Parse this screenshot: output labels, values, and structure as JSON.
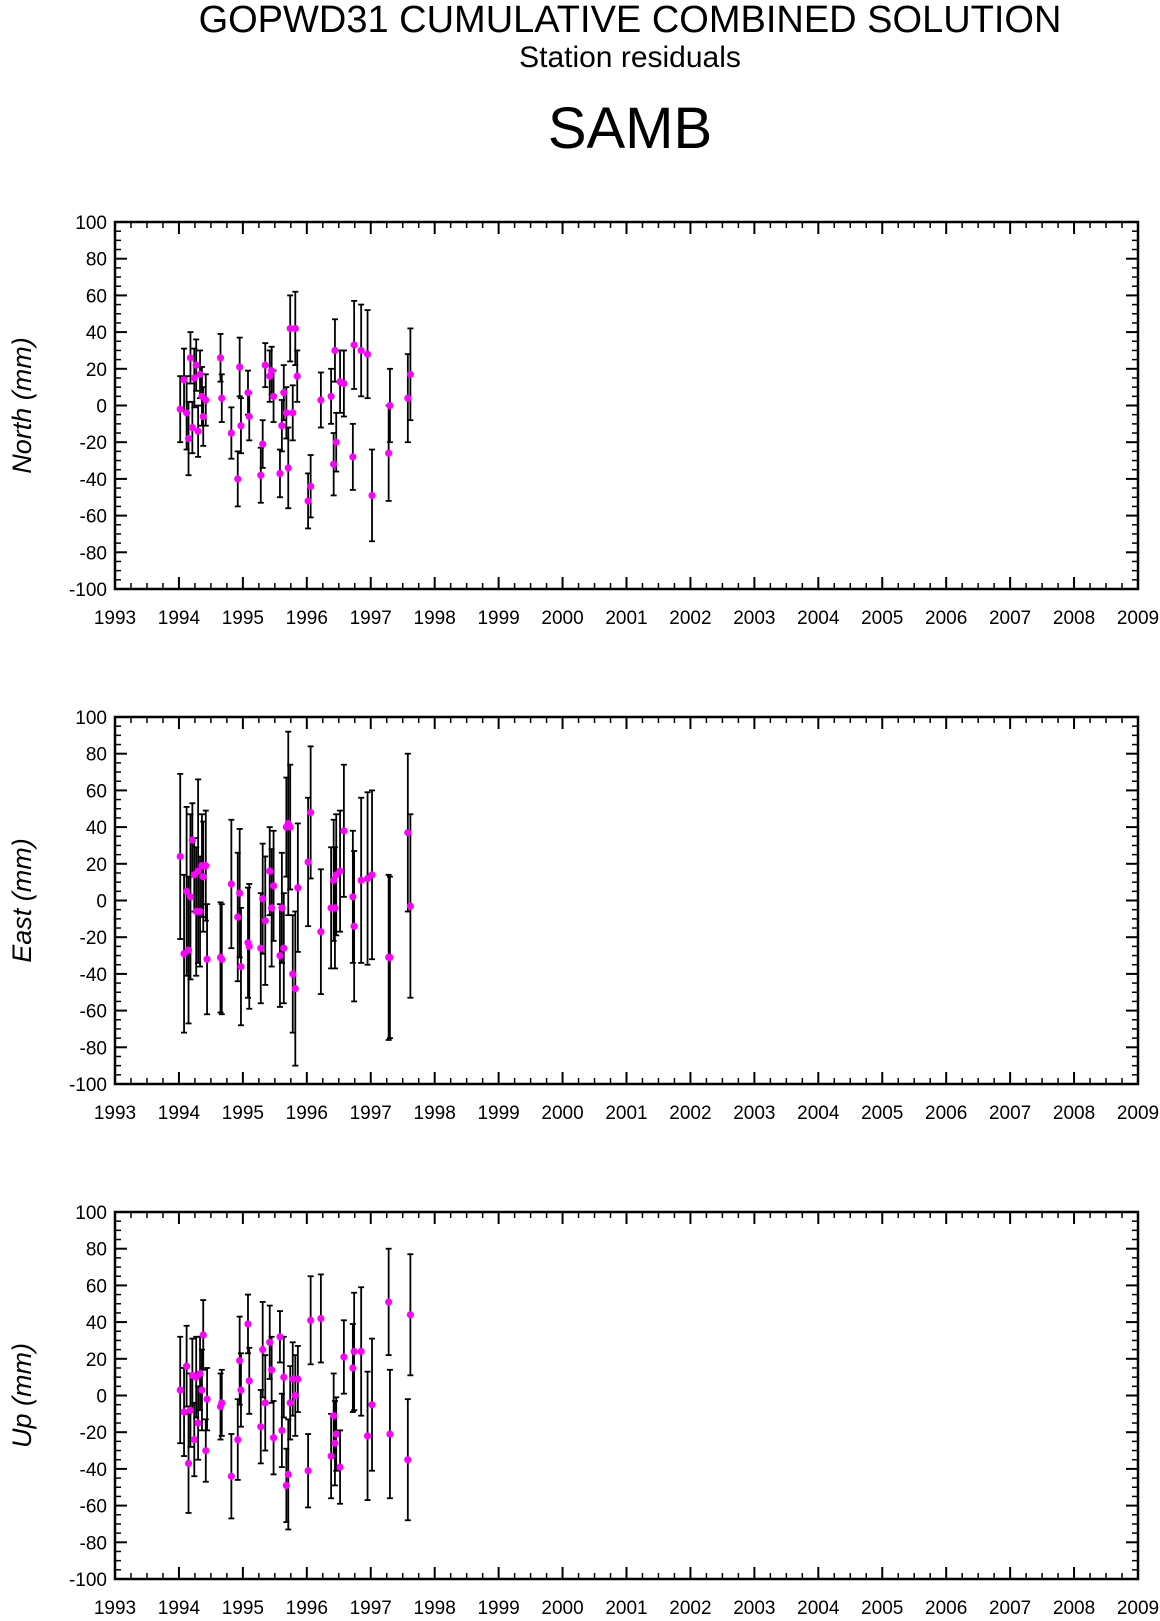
{
  "header": {
    "title": "GOPWD31 CUMULATIVE COMBINED SOLUTION",
    "subtitle": "Station residuals",
    "station": "SAMB"
  },
  "colors": {
    "marker": "#ff00ff",
    "errorbar": "#000000",
    "axis": "#000000"
  },
  "chart_data": [
    {
      "type": "scatter",
      "title": "",
      "ylabel": "North (mm)",
      "xlim": [
        1993,
        2009
      ],
      "ylim": [
        -100,
        100
      ],
      "xticks": [
        "1993",
        "1994",
        "1995",
        "1996",
        "1997",
        "1998",
        "1999",
        "2000",
        "2001",
        "2002",
        "2003",
        "2004",
        "2005",
        "2006",
        "2007",
        "2008",
        "2009"
      ],
      "yticks": [
        "-100",
        "-80",
        "-60",
        "-40",
        "-20",
        "0",
        "20",
        "40",
        "60",
        "80",
        "100"
      ],
      "grid": false,
      "points": [
        {
          "x": 1994.02,
          "y": -2,
          "err": 18
        },
        {
          "x": 1994.08,
          "y": 14,
          "err": 17
        },
        {
          "x": 1994.12,
          "y": -4,
          "err": 20
        },
        {
          "x": 1994.15,
          "y": -18,
          "err": 20
        },
        {
          "x": 1994.18,
          "y": 26,
          "err": 14
        },
        {
          "x": 1994.21,
          "y": -12,
          "err": 14
        },
        {
          "x": 1994.24,
          "y": 15,
          "err": 16
        },
        {
          "x": 1994.27,
          "y": 22,
          "err": 14
        },
        {
          "x": 1994.3,
          "y": -14,
          "err": 14
        },
        {
          "x": 1994.33,
          "y": 17,
          "err": 13
        },
        {
          "x": 1994.36,
          "y": 5,
          "err": 16
        },
        {
          "x": 1994.38,
          "y": -6,
          "err": 16
        },
        {
          "x": 1994.42,
          "y": 3,
          "err": 14
        },
        {
          "x": 1994.65,
          "y": 26,
          "err": 13
        },
        {
          "x": 1994.67,
          "y": 4,
          "err": 13
        },
        {
          "x": 1994.82,
          "y": -15,
          "err": 14
        },
        {
          "x": 1994.92,
          "y": -40,
          "err": 15
        },
        {
          "x": 1994.95,
          "y": 21,
          "err": 16
        },
        {
          "x": 1994.97,
          "y": -11,
          "err": 15
        },
        {
          "x": 1995.08,
          "y": 7,
          "err": 12
        },
        {
          "x": 1995.1,
          "y": -6,
          "err": 13
        },
        {
          "x": 1995.28,
          "y": -38,
          "err": 15
        },
        {
          "x": 1995.31,
          "y": -21,
          "err": 13
        },
        {
          "x": 1995.35,
          "y": 22,
          "err": 12
        },
        {
          "x": 1995.42,
          "y": 16,
          "err": 14
        },
        {
          "x": 1995.45,
          "y": 19,
          "err": 13
        },
        {
          "x": 1995.48,
          "y": 5,
          "err": 14
        },
        {
          "x": 1995.58,
          "y": -37,
          "err": 13
        },
        {
          "x": 1995.61,
          "y": -11,
          "err": 14
        },
        {
          "x": 1995.64,
          "y": 7,
          "err": 15
        },
        {
          "x": 1995.68,
          "y": -4,
          "err": 14
        },
        {
          "x": 1995.71,
          "y": -34,
          "err": 22
        },
        {
          "x": 1995.74,
          "y": 42,
          "err": 18
        },
        {
          "x": 1995.78,
          "y": -4,
          "err": 15
        },
        {
          "x": 1995.82,
          "y": 42,
          "err": 20
        },
        {
          "x": 1995.85,
          "y": 16,
          "err": 14
        },
        {
          "x": 1996.02,
          "y": -52,
          "err": 15
        },
        {
          "x": 1996.06,
          "y": -44,
          "err": 17
        },
        {
          "x": 1996.22,
          "y": 3,
          "err": 15
        },
        {
          "x": 1996.38,
          "y": 5,
          "err": 15
        },
        {
          "x": 1996.42,
          "y": -32,
          "err": 17
        },
        {
          "x": 1996.44,
          "y": 30,
          "err": 17
        },
        {
          "x": 1996.46,
          "y": -20,
          "err": 16
        },
        {
          "x": 1996.52,
          "y": 13,
          "err": 17
        },
        {
          "x": 1996.58,
          "y": 12,
          "err": 18
        },
        {
          "x": 1996.72,
          "y": -28,
          "err": 18
        },
        {
          "x": 1996.74,
          "y": 33,
          "err": 24
        },
        {
          "x": 1996.85,
          "y": 30,
          "err": 25
        },
        {
          "x": 1996.95,
          "y": 28,
          "err": 24
        },
        {
          "x": 1997.02,
          "y": -49,
          "err": 25
        },
        {
          "x": 1997.28,
          "y": -26,
          "err": 26
        },
        {
          "x": 1997.3,
          "y": 0,
          "err": 20
        },
        {
          "x": 1997.58,
          "y": 4,
          "err": 24
        },
        {
          "x": 1997.62,
          "y": 17,
          "err": 25
        }
      ]
    },
    {
      "type": "scatter",
      "title": "",
      "ylabel": "East (mm)",
      "xlim": [
        1993,
        2009
      ],
      "ylim": [
        -100,
        100
      ],
      "xticks": [
        "1993",
        "1994",
        "1995",
        "1996",
        "1997",
        "1998",
        "1999",
        "2000",
        "2001",
        "2002",
        "2003",
        "2004",
        "2005",
        "2006",
        "2007",
        "2008",
        "2009"
      ],
      "yticks": [
        "-100",
        "-80",
        "-60",
        "-40",
        "-20",
        "0",
        "20",
        "40",
        "60",
        "80",
        "100"
      ],
      "grid": false,
      "points": [
        {
          "x": 1994.02,
          "y": 24,
          "err": 45
        },
        {
          "x": 1994.08,
          "y": -29,
          "err": 43
        },
        {
          "x": 1994.12,
          "y": 5,
          "err": 46
        },
        {
          "x": 1994.15,
          "y": -27,
          "err": 40
        },
        {
          "x": 1994.18,
          "y": 2,
          "err": 45
        },
        {
          "x": 1994.21,
          "y": 33,
          "err": 20
        },
        {
          "x": 1994.24,
          "y": 14,
          "err": 20
        },
        {
          "x": 1994.27,
          "y": -6,
          "err": 35
        },
        {
          "x": 1994.3,
          "y": 16,
          "err": 50
        },
        {
          "x": 1994.33,
          "y": -6,
          "err": 30
        },
        {
          "x": 1994.36,
          "y": 19,
          "err": 28
        },
        {
          "x": 1994.38,
          "y": 13,
          "err": 30
        },
        {
          "x": 1994.42,
          "y": 19,
          "err": 30
        },
        {
          "x": 1994.44,
          "y": -32,
          "err": 30
        },
        {
          "x": 1994.65,
          "y": -31,
          "err": 30
        },
        {
          "x": 1994.67,
          "y": -32,
          "err": 30
        },
        {
          "x": 1994.82,
          "y": 9,
          "err": 35
        },
        {
          "x": 1994.92,
          "y": -9,
          "err": 35
        },
        {
          "x": 1994.95,
          "y": 4,
          "err": 35
        },
        {
          "x": 1994.97,
          "y": -36,
          "err": 32
        },
        {
          "x": 1995.08,
          "y": -23,
          "err": 30
        },
        {
          "x": 1995.1,
          "y": -25,
          "err": 34
        },
        {
          "x": 1995.28,
          "y": -26,
          "err": 30
        },
        {
          "x": 1995.31,
          "y": 1,
          "err": 30
        },
        {
          "x": 1995.35,
          "y": -11,
          "err": 35
        },
        {
          "x": 1995.42,
          "y": 16,
          "err": 24
        },
        {
          "x": 1995.45,
          "y": -4,
          "err": 32
        },
        {
          "x": 1995.48,
          "y": 8,
          "err": 30
        },
        {
          "x": 1995.58,
          "y": -30,
          "err": 28
        },
        {
          "x": 1995.61,
          "y": -4,
          "err": 30
        },
        {
          "x": 1995.64,
          "y": -26,
          "err": 30
        },
        {
          "x": 1995.68,
          "y": 40,
          "err": 27
        },
        {
          "x": 1995.71,
          "y": 42,
          "err": 50
        },
        {
          "x": 1995.74,
          "y": 40,
          "err": 34
        },
        {
          "x": 1995.78,
          "y": -40,
          "err": 32
        },
        {
          "x": 1995.82,
          "y": -48,
          "err": 42
        },
        {
          "x": 1995.86,
          "y": 7,
          "err": 35
        },
        {
          "x": 1996.02,
          "y": 21,
          "err": 35
        },
        {
          "x": 1996.06,
          "y": 48,
          "err": 36
        },
        {
          "x": 1996.22,
          "y": -17,
          "err": 34
        },
        {
          "x": 1996.38,
          "y": -4,
          "err": 33
        },
        {
          "x": 1996.42,
          "y": 11,
          "err": 33
        },
        {
          "x": 1996.44,
          "y": -4,
          "err": 33
        },
        {
          "x": 1996.46,
          "y": 14,
          "err": 33
        },
        {
          "x": 1996.52,
          "y": 16,
          "err": 33
        },
        {
          "x": 1996.58,
          "y": 38,
          "err": 36
        },
        {
          "x": 1996.72,
          "y": 2,
          "err": 36
        },
        {
          "x": 1996.74,
          "y": -14,
          "err": 41
        },
        {
          "x": 1996.85,
          "y": 11,
          "err": 45
        },
        {
          "x": 1996.95,
          "y": 12,
          "err": 47
        },
        {
          "x": 1997.02,
          "y": 14,
          "err": 46
        },
        {
          "x": 1997.28,
          "y": -31,
          "err": 45
        },
        {
          "x": 1997.3,
          "y": -31,
          "err": 44
        },
        {
          "x": 1997.58,
          "y": 37,
          "err": 43
        },
        {
          "x": 1997.62,
          "y": -3,
          "err": 50
        }
      ]
    },
    {
      "type": "scatter",
      "title": "",
      "ylabel": "Up (mm)",
      "xlim": [
        1993,
        2009
      ],
      "ylim": [
        -100,
        100
      ],
      "xticks": [
        "1993",
        "1994",
        "1995",
        "1996",
        "1997",
        "1998",
        "1999",
        "2000",
        "2001",
        "2002",
        "2003",
        "2004",
        "2005",
        "2006",
        "2007",
        "2008",
        "2009"
      ],
      "yticks": [
        "-100",
        "-80",
        "-60",
        "-40",
        "-20",
        "0",
        "20",
        "40",
        "60",
        "80",
        "100"
      ],
      "grid": false,
      "points": [
        {
          "x": 1994.02,
          "y": 3,
          "err": 29
        },
        {
          "x": 1994.08,
          "y": -9,
          "err": 24
        },
        {
          "x": 1994.12,
          "y": 16,
          "err": 22
        },
        {
          "x": 1994.15,
          "y": -37,
          "err": 27
        },
        {
          "x": 1994.18,
          "y": -8,
          "err": 20
        },
        {
          "x": 1994.21,
          "y": 11,
          "err": 20
        },
        {
          "x": 1994.24,
          "y": -24,
          "err": 20
        },
        {
          "x": 1994.27,
          "y": 10,
          "err": 22
        },
        {
          "x": 1994.3,
          "y": -15,
          "err": 20
        },
        {
          "x": 1994.33,
          "y": 12,
          "err": 20
        },
        {
          "x": 1994.36,
          "y": 3,
          "err": 22
        },
        {
          "x": 1994.38,
          "y": 33,
          "err": 19
        },
        {
          "x": 1994.42,
          "y": -30,
          "err": 17
        },
        {
          "x": 1994.44,
          "y": -2,
          "err": 17
        },
        {
          "x": 1994.65,
          "y": -6,
          "err": 18
        },
        {
          "x": 1994.67,
          "y": -4,
          "err": 18
        },
        {
          "x": 1994.82,
          "y": -44,
          "err": 23
        },
        {
          "x": 1994.92,
          "y": -24,
          "err": 22
        },
        {
          "x": 1994.95,
          "y": 19,
          "err": 24
        },
        {
          "x": 1994.97,
          "y": 3,
          "err": 20
        },
        {
          "x": 1995.08,
          "y": 39,
          "err": 16
        },
        {
          "x": 1995.1,
          "y": 8,
          "err": 18
        },
        {
          "x": 1995.28,
          "y": -17,
          "err": 20
        },
        {
          "x": 1995.31,
          "y": 25,
          "err": 26
        },
        {
          "x": 1995.35,
          "y": -4,
          "err": 26
        },
        {
          "x": 1995.42,
          "y": 29,
          "err": 20
        },
        {
          "x": 1995.45,
          "y": 14,
          "err": 18
        },
        {
          "x": 1995.48,
          "y": -23,
          "err": 20
        },
        {
          "x": 1995.58,
          "y": 32,
          "err": 14
        },
        {
          "x": 1995.61,
          "y": -19,
          "err": 20
        },
        {
          "x": 1995.64,
          "y": 10,
          "err": 22
        },
        {
          "x": 1995.68,
          "y": -49,
          "err": 20
        },
        {
          "x": 1995.71,
          "y": -43,
          "err": 30
        },
        {
          "x": 1995.74,
          "y": -4,
          "err": 20
        },
        {
          "x": 1995.78,
          "y": 9,
          "err": 20
        },
        {
          "x": 1995.82,
          "y": 0,
          "err": 22
        },
        {
          "x": 1995.86,
          "y": 9,
          "err": 18
        },
        {
          "x": 1996.02,
          "y": -41,
          "err": 20
        },
        {
          "x": 1996.06,
          "y": 41,
          "err": 24
        },
        {
          "x": 1996.22,
          "y": 42,
          "err": 24
        },
        {
          "x": 1996.38,
          "y": -33,
          "err": 23
        },
        {
          "x": 1996.42,
          "y": -11,
          "err": 23
        },
        {
          "x": 1996.44,
          "y": -26,
          "err": 23
        },
        {
          "x": 1996.46,
          "y": -21,
          "err": 20
        },
        {
          "x": 1996.52,
          "y": -39,
          "err": 20
        },
        {
          "x": 1996.58,
          "y": 21,
          "err": 20
        },
        {
          "x": 1996.72,
          "y": 15,
          "err": 24
        },
        {
          "x": 1996.74,
          "y": 24,
          "err": 32
        },
        {
          "x": 1996.85,
          "y": 24,
          "err": 35
        },
        {
          "x": 1996.95,
          "y": -22,
          "err": 35
        },
        {
          "x": 1997.02,
          "y": -5,
          "err": 36
        },
        {
          "x": 1997.28,
          "y": 51,
          "err": 29
        },
        {
          "x": 1997.3,
          "y": -21,
          "err": 35
        },
        {
          "x": 1997.58,
          "y": -35,
          "err": 33
        },
        {
          "x": 1997.62,
          "y": 44,
          "err": 33
        }
      ]
    }
  ]
}
